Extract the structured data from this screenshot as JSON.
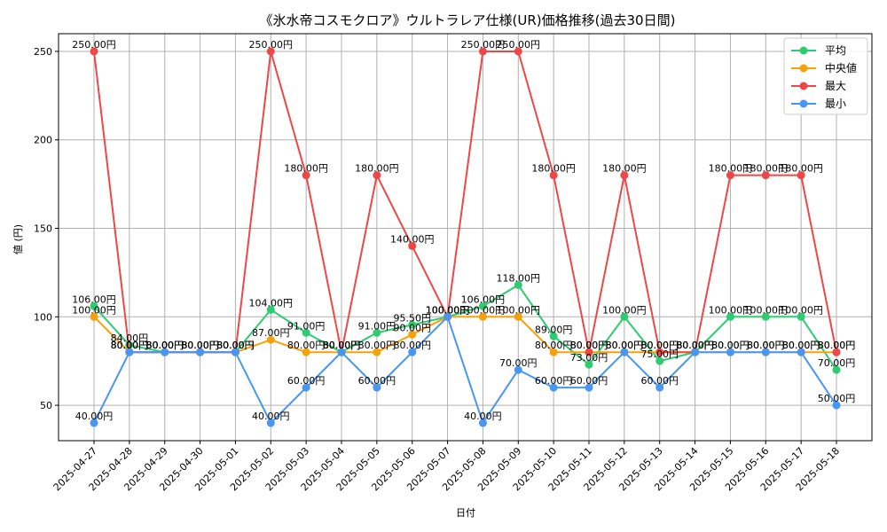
{
  "chart_data": {
    "type": "line",
    "title": "《氷水帝コスモクロア》ウルトラレア仕様(UR)価格推移(過去30日間)",
    "xlabel": "日付",
    "ylabel": "値 (円)",
    "x": [
      "2025-04-27",
      "2025-04-28",
      "2025-04-29",
      "2025-04-30",
      "2025-05-01",
      "2025-05-02",
      "2025-05-03",
      "2025-05-04",
      "2025-05-05",
      "2025-05-06",
      "2025-05-07",
      "2025-05-08",
      "2025-05-09",
      "2025-05-10",
      "2025-05-11",
      "2025-05-12",
      "2025-05-13",
      "2025-05-14",
      "2025-05-15",
      "2025-05-16",
      "2025-05-17",
      "2025-05-18"
    ],
    "yticks": [
      50,
      100,
      150,
      200,
      250
    ],
    "ylim": [
      30,
      260
    ],
    "grid": true,
    "legend_position": "top-right",
    "label_suffix": "円",
    "series": [
      {
        "name": "平均",
        "color": "#2ecc71",
        "values": [
          106,
          84,
          80,
          80,
          80,
          104,
          91,
          80,
          91,
          95.5,
          100,
          106,
          118,
          89,
          73,
          100,
          75,
          80,
          100,
          100,
          100,
          70
        ]
      },
      {
        "name": "中央値",
        "color": "#f5a20a",
        "values": [
          100,
          80,
          80,
          80,
          80,
          87,
          80,
          80,
          80,
          90,
          100,
          100,
          100,
          80,
          80,
          80,
          80,
          80,
          80,
          80,
          80,
          80
        ]
      },
      {
        "name": "最大",
        "color": "#ef4747",
        "values": [
          250,
          80,
          80,
          80,
          80,
          250,
          180,
          80,
          180,
          140,
          100,
          250,
          250,
          180,
          80,
          180,
          80,
          80,
          180,
          180,
          180,
          80
        ]
      },
      {
        "name": "最小",
        "color": "#4896f4",
        "values": [
          40,
          80,
          80,
          80,
          80,
          40,
          60,
          80,
          60,
          80,
          100,
          40,
          70,
          60,
          60,
          80,
          60,
          80,
          80,
          80,
          80,
          50
        ]
      }
    ]
  }
}
